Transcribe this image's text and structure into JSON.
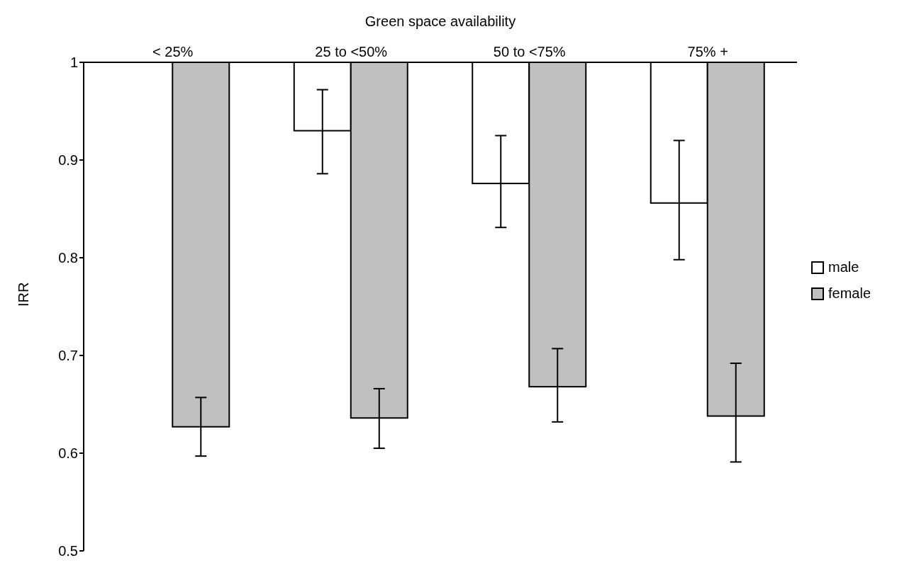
{
  "chart_data": {
    "type": "bar",
    "xlabel": "Green space availability",
    "ylabel": "IRR",
    "categories": [
      "< 25%",
      "25 to <50%",
      "50 to <75%",
      "75% +"
    ],
    "series": [
      {
        "name": "male",
        "color": "#ffffff",
        "base": [
          null,
          1,
          1,
          1
        ],
        "values": [
          null,
          -0.07,
          -0.124,
          -0.144
        ],
        "errors": [
          null,
          [
            0.886,
            0.972
          ],
          [
            0.831,
            0.925
          ],
          [
            0.798,
            0.92
          ]
        ]
      },
      {
        "name": "female",
        "color": "#c0c0c0",
        "base": [
          1,
          1,
          1,
          1
        ],
        "values": [
          -0.373,
          -0.364,
          -0.332,
          -0.362
        ],
        "errors": [
          [
            0.597,
            0.657
          ],
          [
            0.605,
            0.666
          ],
          [
            0.632,
            0.707
          ],
          [
            0.591,
            0.692
          ]
        ]
      }
    ],
    "ylim": [
      0.5,
      1
    ],
    "yticks": [
      0.5,
      0.6,
      0.7,
      0.8,
      0.9,
      1
    ],
    "grid": false,
    "legend": "right"
  }
}
